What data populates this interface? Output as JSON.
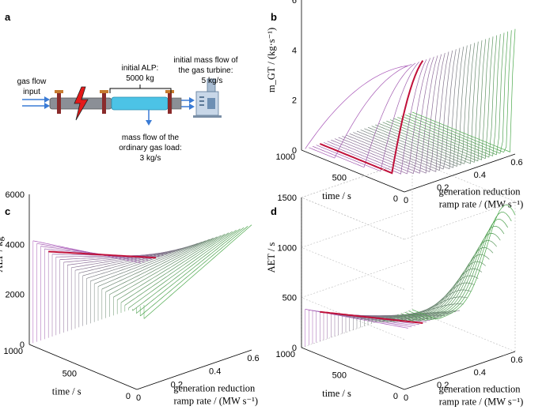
{
  "panels": {
    "a": {
      "label": "a",
      "gas_flow_input": [
        "gas flow",
        "input"
      ],
      "initial_alp": [
        "initial ALP:",
        "5000 kg"
      ],
      "initial_mass_flow": [
        "initial mass flow of",
        "the gas turbine:",
        "5 kg/s"
      ],
      "ordinary_load": [
        "mass flow of the",
        "ordinary gas load:",
        "3 kg/s"
      ]
    },
    "b": {
      "label": "b"
    },
    "c": {
      "label": "c"
    },
    "d": {
      "label": "d"
    }
  },
  "colors": {
    "highlight": "#c0103a",
    "low_rate": "#a855b8",
    "high_rate": "#4aa84a",
    "pipe": "#4cc3e6"
  },
  "chart_data": [
    {
      "panel": "b",
      "type": "surface",
      "xlabel": "generation reduction ramp rate / (MW s⁻¹)",
      "ylabel": "time / s",
      "zlabel": "m_GT / (kg·s⁻¹)",
      "x_ticks": [
        0,
        0.2,
        0.4,
        0.6
      ],
      "y_ticks": [
        0,
        500,
        1000
      ],
      "z_ticks": [
        0,
        2,
        4,
        6
      ],
      "xlim": [
        0,
        0.6
      ],
      "ylim": [
        0,
        1000
      ],
      "zlim": [
        0,
        6
      ],
      "x_values": [
        0.02,
        0.04,
        0.06,
        0.08,
        0.1,
        0.12,
        0.14,
        0.16,
        0.18,
        0.2,
        0.22,
        0.24,
        0.26,
        0.28,
        0.3,
        0.32,
        0.34,
        0.36,
        0.38,
        0.4,
        0.42,
        0.44,
        0.46,
        0.48,
        0.5,
        0.52,
        0.54,
        0.56,
        0.58,
        0.6
      ],
      "highlight_x": 0.1,
      "initial_value": 5,
      "grid": false
    },
    {
      "panel": "c",
      "type": "surface",
      "xlabel": "generation reduction ramp rate / (MW s⁻¹)",
      "ylabel": "time / s",
      "zlabel": "ALP / kg",
      "x_ticks": [
        0,
        0.2,
        0.4,
        0.6
      ],
      "y_ticks": [
        0,
        500,
        1000
      ],
      "z_ticks": [
        0,
        2000,
        4000,
        6000
      ],
      "xlim": [
        0,
        0.6
      ],
      "ylim": [
        0,
        1000
      ],
      "zlim": [
        0,
        6000
      ],
      "x_values": [
        0.02,
        0.04,
        0.06,
        0.08,
        0.1,
        0.12,
        0.14,
        0.16,
        0.18,
        0.2,
        0.22,
        0.24,
        0.26,
        0.28,
        0.3,
        0.32,
        0.34,
        0.36,
        0.38,
        0.4,
        0.42,
        0.44,
        0.46,
        0.48,
        0.5,
        0.52,
        0.54,
        0.56,
        0.58,
        0.6
      ],
      "highlight_x": 0.1,
      "initial_value": 5000,
      "grid": false
    },
    {
      "panel": "d",
      "type": "surface",
      "xlabel": "generation reduction ramp rate / (MW s⁻¹)",
      "ylabel": "time / s",
      "zlabel": "AET / s",
      "x_ticks": [
        0,
        0.2,
        0.4,
        0.6
      ],
      "y_ticks": [
        0,
        500,
        1000
      ],
      "z_ticks": [
        0,
        500,
        1000,
        1500
      ],
      "xlim": [
        0,
        0.6
      ],
      "ylim": [
        0,
        1000
      ],
      "zlim": [
        0,
        1500
      ],
      "x_values": [
        0.02,
        0.04,
        0.06,
        0.08,
        0.1,
        0.12,
        0.14,
        0.16,
        0.18,
        0.2,
        0.22,
        0.24,
        0.26,
        0.28,
        0.3,
        0.32,
        0.34,
        0.36,
        0.38,
        0.4,
        0.42,
        0.44,
        0.46,
        0.48,
        0.5,
        0.52,
        0.54,
        0.56,
        0.58,
        0.6
      ],
      "highlight_x": 0.1,
      "initial_value": 600,
      "grid": true
    }
  ]
}
